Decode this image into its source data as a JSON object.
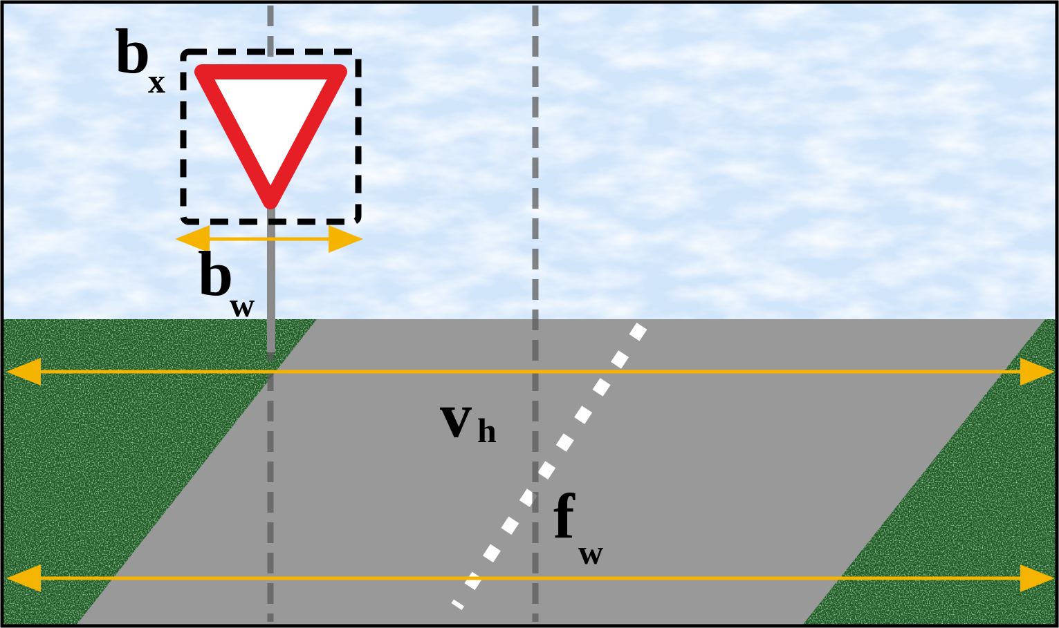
{
  "labels": {
    "bx_main": "b",
    "bx_sub": "x",
    "bw_main": "b",
    "bw_sub": "w",
    "vh_main": "v",
    "vh_sub": "h",
    "fw_main": "f",
    "fw_sub": "w"
  },
  "colors": {
    "sky": "#d2e6fb",
    "grass": "#1f5a26",
    "road": "#999999",
    "sign_border": "#e61e25",
    "sign_fill": "#ffffff",
    "arrow": "#f5b400",
    "guide_line": "#5c5c5c",
    "lane_marking": "#ffffff",
    "frame": "#000000"
  },
  "icons": {
    "sign": "yield-sign-icon",
    "bounding_box": "dashed-bounding-box"
  }
}
